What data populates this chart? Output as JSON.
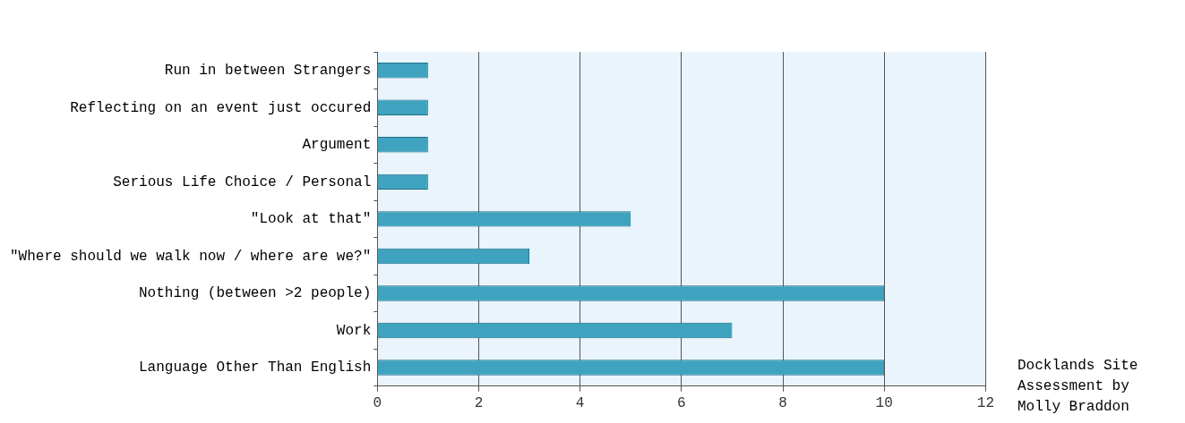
{
  "chart_data": {
    "type": "bar",
    "orientation": "horizontal",
    "categories": [
      "Run in between Strangers",
      "Reflecting on an event just occured",
      "Argument",
      "Serious Life Choice / Personal",
      "\"Look at that\"",
      "\"Where should we walk now / where are we?\"",
      "Nothing (between >2 people)",
      "Work",
      "Language Other Than English"
    ],
    "values": [
      1,
      1,
      1,
      1,
      5,
      3,
      10,
      7,
      10
    ],
    "color": "#3fa3bf",
    "xlim": [
      0,
      12
    ],
    "xticks": [
      0,
      2,
      4,
      6,
      8,
      10,
      12
    ],
    "grid": "x",
    "legend": false,
    "annotations": [
      "Docklands Site Assessment by Molly Braddon"
    ]
  }
}
